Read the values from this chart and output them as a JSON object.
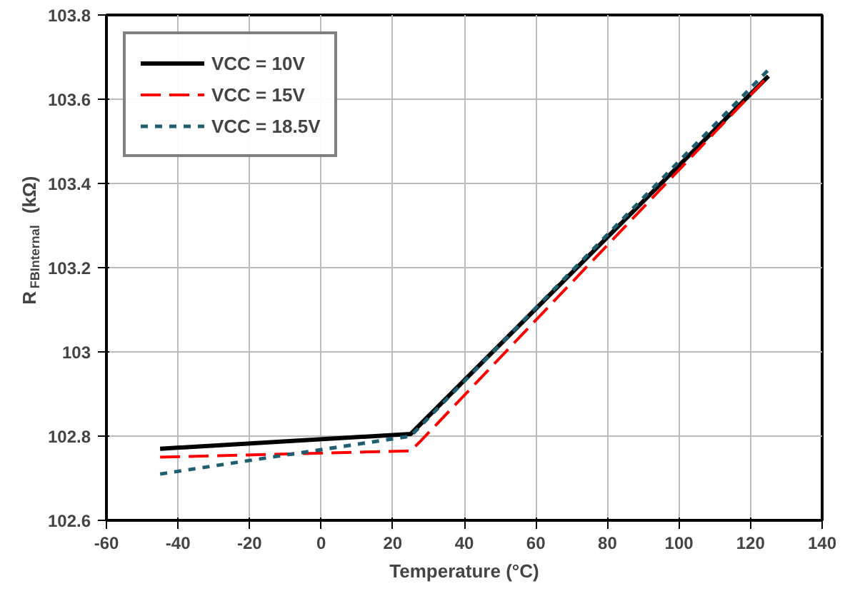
{
  "chart_data": {
    "type": "line",
    "xlabel": "Temperature (°C)",
    "ylabel": "R$_{FBInternal}$ (kΩ)",
    "xlim": [
      -60,
      140
    ],
    "xticks": [
      -60,
      -40,
      -20,
      0,
      20,
      40,
      60,
      80,
      100,
      120,
      140
    ],
    "ylim": [
      102.6,
      103.8
    ],
    "yticks": [
      102.6,
      102.8,
      103,
      103.2,
      103.4,
      103.6,
      103.8
    ],
    "grid": true,
    "legend": "top left",
    "series": [
      {
        "name": "VCC = 10V",
        "color": "#000000",
        "line_style": "solid",
        "x": [
          -45,
          25,
          125
        ],
        "values": [
          102.77,
          102.805,
          103.655
        ]
      },
      {
        "name": "VCC = 15V",
        "color": "#ff0000",
        "line_style": "dashed",
        "x": [
          -45,
          25,
          28,
          125
        ],
        "values": [
          102.75,
          102.765,
          102.79,
          103.655
        ]
      },
      {
        "name": "VCC = 18.5V",
        "color": "#1f5f6f",
        "line_style": "dotted",
        "x": [
          -45,
          25,
          125
        ],
        "values": [
          102.71,
          102.8,
          103.67
        ]
      }
    ]
  }
}
